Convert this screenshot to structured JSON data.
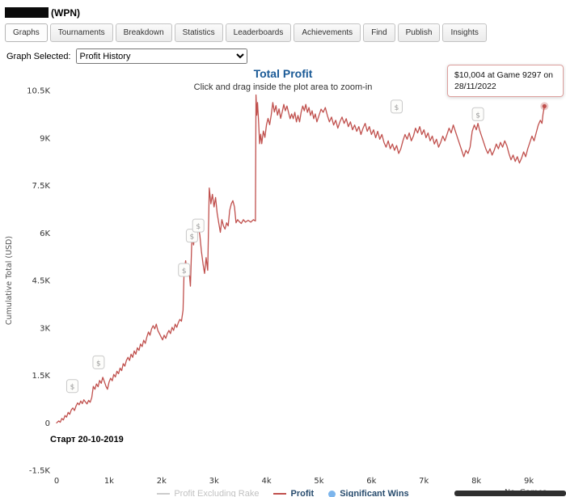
{
  "header": {
    "account_suffix": "(WPN)"
  },
  "tabs": [
    {
      "label": "Graphs",
      "active": true
    },
    {
      "label": "Tournaments"
    },
    {
      "label": "Breakdown"
    },
    {
      "label": "Statistics"
    },
    {
      "label": "Leaderboards"
    },
    {
      "label": "Achievements"
    },
    {
      "label": "Find"
    },
    {
      "label": "Publish"
    },
    {
      "label": "Insights"
    }
  ],
  "graph_selector": {
    "label": "Graph Selected:",
    "selected": "Profit History"
  },
  "chart": {
    "title": "Total Profit",
    "subtitle": "Click and drag inside the plot area to zoom-in",
    "annotation": "Старт 20-10-2019",
    "tooltip": {
      "line1": "$10,004 at Game 9297 on",
      "line2": "28/11/2022"
    },
    "legend": [
      {
        "label": "Profit Excluding Rake",
        "enabled": false
      },
      {
        "label": "Profit",
        "color": "#c0504d"
      },
      {
        "label": "Significant Wins",
        "color": "#7cb5ec"
      }
    ]
  },
  "chart_data": {
    "type": "line",
    "title": "Total Profit",
    "xlabel": "No. Games",
    "ylabel": "Cumulative Total (USD)",
    "xlim": [
      0,
      9400
    ],
    "ylim": [
      -1500,
      10500
    ],
    "x_ticks": [
      {
        "v": 0,
        "label": "0"
      },
      {
        "v": 1000,
        "label": "1k"
      },
      {
        "v": 2000,
        "label": "2k"
      },
      {
        "v": 3000,
        "label": "3k"
      },
      {
        "v": 4000,
        "label": "4k"
      },
      {
        "v": 5000,
        "label": "5k"
      },
      {
        "v": 6000,
        "label": "6k"
      },
      {
        "v": 7000,
        "label": "7k"
      },
      {
        "v": 8000,
        "label": "8k"
      },
      {
        "v": 9000,
        "label": "9k"
      }
    ],
    "y_ticks": [
      {
        "v": -1500,
        "label": "-1.5K"
      },
      {
        "v": 0,
        "label": "0"
      },
      {
        "v": 1500,
        "label": "1.5K"
      },
      {
        "v": 3000,
        "label": "3K"
      },
      {
        "v": 4500,
        "label": "4.5K"
      },
      {
        "v": 6000,
        "label": "6K"
      },
      {
        "v": 7500,
        "label": "7.5K"
      },
      {
        "v": 9000,
        "label": "9K"
      },
      {
        "v": 10500,
        "label": "10.5K"
      }
    ],
    "series": [
      {
        "name": "Profit",
        "color": "#c0504d",
        "points": [
          [
            0,
            0
          ],
          [
            40,
            60
          ],
          [
            70,
            20
          ],
          [
            100,
            140
          ],
          [
            130,
            90
          ],
          [
            160,
            230
          ],
          [
            190,
            180
          ],
          [
            220,
            330
          ],
          [
            250,
            270
          ],
          [
            280,
            410
          ],
          [
            310,
            470
          ],
          [
            340,
            390
          ],
          [
            370,
            530
          ],
          [
            400,
            630
          ],
          [
            430,
            570
          ],
          [
            460,
            690
          ],
          [
            490,
            610
          ],
          [
            520,
            730
          ],
          [
            550,
            660
          ],
          [
            580,
            600
          ],
          [
            610,
            710
          ],
          [
            640,
            650
          ],
          [
            670,
            800
          ],
          [
            700,
            1150
          ],
          [
            730,
            1060
          ],
          [
            760,
            1230
          ],
          [
            790,
            1140
          ],
          [
            820,
            1340
          ],
          [
            850,
            1250
          ],
          [
            880,
            1440
          ],
          [
            910,
            1300
          ],
          [
            940,
            1160
          ],
          [
            970,
            1060
          ],
          [
            1000,
            1290
          ],
          [
            1030,
            1410
          ],
          [
            1060,
            1330
          ],
          [
            1090,
            1530
          ],
          [
            1120,
            1450
          ],
          [
            1150,
            1630
          ],
          [
            1180,
            1550
          ],
          [
            1210,
            1730
          ],
          [
            1240,
            1650
          ],
          [
            1270,
            1870
          ],
          [
            1300,
            1790
          ],
          [
            1330,
            1970
          ],
          [
            1360,
            2070
          ],
          [
            1390,
            1970
          ],
          [
            1420,
            2170
          ],
          [
            1450,
            2070
          ],
          [
            1480,
            2270
          ],
          [
            1510,
            2170
          ],
          [
            1540,
            2370
          ],
          [
            1570,
            2290
          ],
          [
            1600,
            2490
          ],
          [
            1630,
            2410
          ],
          [
            1660,
            2610
          ],
          [
            1690,
            2510
          ],
          [
            1720,
            2710
          ],
          [
            1750,
            2870
          ],
          [
            1780,
            2770
          ],
          [
            1810,
            2970
          ],
          [
            1840,
            3070
          ],
          [
            1870,
            2970
          ],
          [
            1900,
            3120
          ],
          [
            1930,
            2920
          ],
          [
            1960,
            2820
          ],
          [
            1990,
            2720
          ],
          [
            2020,
            2620
          ],
          [
            2050,
            2770
          ],
          [
            2080,
            2670
          ],
          [
            2110,
            2820
          ],
          [
            2140,
            2920
          ],
          [
            2170,
            2820
          ],
          [
            2200,
            3020
          ],
          [
            2230,
            2920
          ],
          [
            2260,
            3120
          ],
          [
            2290,
            3020
          ],
          [
            2320,
            3170
          ],
          [
            2350,
            3270
          ],
          [
            2380,
            3210
          ],
          [
            2410,
            3560
          ],
          [
            2430,
            4820
          ],
          [
            2460,
            5120
          ],
          [
            2490,
            4720
          ],
          [
            2520,
            4920
          ],
          [
            2550,
            4320
          ],
          [
            2580,
            5900
          ],
          [
            2610,
            5620
          ],
          [
            2640,
            6120
          ],
          [
            2670,
            5820
          ],
          [
            2700,
            6220
          ],
          [
            2730,
            5920
          ],
          [
            2760,
            5420
          ],
          [
            2790,
            5020
          ],
          [
            2820,
            4720
          ],
          [
            2850,
            5220
          ],
          [
            2880,
            4820
          ],
          [
            2910,
            7420
          ],
          [
            2940,
            6920
          ],
          [
            2970,
            7220
          ],
          [
            3000,
            6820
          ],
          [
            3030,
            7120
          ],
          [
            3060,
            6620
          ],
          [
            3090,
            6320
          ],
          [
            3120,
            6020
          ],
          [
            3150,
            6420
          ],
          [
            3180,
            6220
          ],
          [
            3210,
            6120
          ],
          [
            3240,
            6320
          ],
          [
            3270,
            6220
          ],
          [
            3300,
            6720
          ],
          [
            3330,
            6920
          ],
          [
            3360,
            7020
          ],
          [
            3390,
            6820
          ],
          [
            3420,
            6320
          ],
          [
            3450,
            6420
          ],
          [
            3480,
            6360
          ],
          [
            3520,
            6300
          ],
          [
            3560,
            6420
          ],
          [
            3600,
            6340
          ],
          [
            3650,
            6400
          ],
          [
            3700,
            6340
          ],
          [
            3750,
            6420
          ],
          [
            3790,
            6380
          ],
          [
            3800,
            10360
          ],
          [
            3815,
            9720
          ],
          [
            3830,
            10120
          ],
          [
            3850,
            9520
          ],
          [
            3870,
            8820
          ],
          [
            3890,
            9120
          ],
          [
            3910,
            8820
          ],
          [
            3940,
            9220
          ],
          [
            3970,
            9020
          ],
          [
            4000,
            9420
          ],
          [
            4030,
            9620
          ],
          [
            4060,
            9420
          ],
          [
            4090,
            9720
          ],
          [
            4120,
            10120
          ],
          [
            4150,
            9820
          ],
          [
            4180,
            10020
          ],
          [
            4210,
            9720
          ],
          [
            4240,
            9920
          ],
          [
            4270,
            9620
          ],
          [
            4300,
            9820
          ],
          [
            4330,
            10060
          ],
          [
            4360,
            9860
          ],
          [
            4390,
            10010
          ],
          [
            4420,
            9810
          ],
          [
            4450,
            9610
          ],
          [
            4480,
            9760
          ],
          [
            4510,
            9610
          ],
          [
            4540,
            9810
          ],
          [
            4570,
            9510
          ],
          [
            4600,
            9710
          ],
          [
            4630,
            9510
          ],
          [
            4660,
            9810
          ],
          [
            4690,
            10010
          ],
          [
            4720,
            9860
          ],
          [
            4750,
            10060
          ],
          [
            4780,
            9810
          ],
          [
            4810,
            9960
          ],
          [
            4840,
            9710
          ],
          [
            4870,
            9860
          ],
          [
            4900,
            9610
          ],
          [
            4930,
            9760
          ],
          [
            4960,
            9510
          ],
          [
            5000,
            9710
          ],
          [
            5040,
            9910
          ],
          [
            5080,
            9810
          ],
          [
            5120,
            9960
          ],
          [
            5160,
            9710
          ],
          [
            5200,
            9510
          ],
          [
            5240,
            9660
          ],
          [
            5280,
            9410
          ],
          [
            5320,
            9560
          ],
          [
            5360,
            9310
          ],
          [
            5400,
            9510
          ],
          [
            5440,
            9660
          ],
          [
            5480,
            9460
          ],
          [
            5520,
            9610
          ],
          [
            5560,
            9360
          ],
          [
            5600,
            9510
          ],
          [
            5640,
            9260
          ],
          [
            5680,
            9410
          ],
          [
            5720,
            9210
          ],
          [
            5760,
            9360
          ],
          [
            5800,
            9110
          ],
          [
            5840,
            9310
          ],
          [
            5880,
            9460
          ],
          [
            5920,
            9210
          ],
          [
            5960,
            9360
          ],
          [
            6000,
            9110
          ],
          [
            6040,
            9260
          ],
          [
            6080,
            9010
          ],
          [
            6120,
            9210
          ],
          [
            6160,
            8960
          ],
          [
            6200,
            9110
          ],
          [
            6240,
            8860
          ],
          [
            6280,
            8710
          ],
          [
            6320,
            8910
          ],
          [
            6360,
            8660
          ],
          [
            6400,
            8810
          ],
          [
            6440,
            8610
          ],
          [
            6480,
            8760
          ],
          [
            6520,
            8510
          ],
          [
            6560,
            8660
          ],
          [
            6600,
            8910
          ],
          [
            6640,
            9110
          ],
          [
            6680,
            8960
          ],
          [
            6720,
            9160
          ],
          [
            6760,
            8910
          ],
          [
            6800,
            9060
          ],
          [
            6840,
            9310
          ],
          [
            6880,
            9160
          ],
          [
            6920,
            9360
          ],
          [
            6960,
            9110
          ],
          [
            7000,
            9260
          ],
          [
            7040,
            9010
          ],
          [
            7080,
            9160
          ],
          [
            7120,
            8910
          ],
          [
            7160,
            9060
          ],
          [
            7200,
            8810
          ],
          [
            7240,
            8960
          ],
          [
            7280,
            8710
          ],
          [
            7320,
            8860
          ],
          [
            7360,
            9060
          ],
          [
            7400,
            8910
          ],
          [
            7440,
            9110
          ],
          [
            7480,
            9310
          ],
          [
            7520,
            9160
          ],
          [
            7560,
            9410
          ],
          [
            7600,
            9210
          ],
          [
            7640,
            9010
          ],
          [
            7680,
            8810
          ],
          [
            7720,
            8610
          ],
          [
            7760,
            8410
          ],
          [
            7800,
            8610
          ],
          [
            7840,
            8510
          ],
          [
            7880,
            8710
          ],
          [
            7920,
            9210
          ],
          [
            7960,
            9410
          ],
          [
            8000,
            9260
          ],
          [
            8030,
            9460
          ],
          [
            8060,
            9260
          ],
          [
            8100,
            9060
          ],
          [
            8140,
            8860
          ],
          [
            8180,
            8660
          ],
          [
            8220,
            8510
          ],
          [
            8260,
            8660
          ],
          [
            8300,
            8460
          ],
          [
            8340,
            8610
          ],
          [
            8380,
            8810
          ],
          [
            8420,
            8660
          ],
          [
            8460,
            8860
          ],
          [
            8500,
            8710
          ],
          [
            8540,
            8910
          ],
          [
            8580,
            8760
          ],
          [
            8620,
            8510
          ],
          [
            8660,
            8310
          ],
          [
            8700,
            8460
          ],
          [
            8740,
            8260
          ],
          [
            8780,
            8410
          ],
          [
            8820,
            8210
          ],
          [
            8860,
            8360
          ],
          [
            8900,
            8560
          ],
          [
            8940,
            8410
          ],
          [
            8980,
            8660
          ],
          [
            9020,
            8860
          ],
          [
            9060,
            9060
          ],
          [
            9100,
            8910
          ],
          [
            9140,
            9160
          ],
          [
            9180,
            9410
          ],
          [
            9220,
            9560
          ],
          [
            9250,
            9460
          ],
          [
            9270,
            9760
          ],
          [
            9297,
            10004
          ]
        ]
      }
    ],
    "significant_wins": [
      [
        300,
        1150
      ],
      [
        800,
        1900
      ],
      [
        2430,
        4820
      ],
      [
        2580,
        5900
      ],
      [
        2700,
        6220
      ],
      [
        6480,
        9980
      ],
      [
        8030,
        9740
      ]
    ],
    "end_point": {
      "game": 9297,
      "profit": 10004,
      "date": "28/11/2022"
    }
  }
}
